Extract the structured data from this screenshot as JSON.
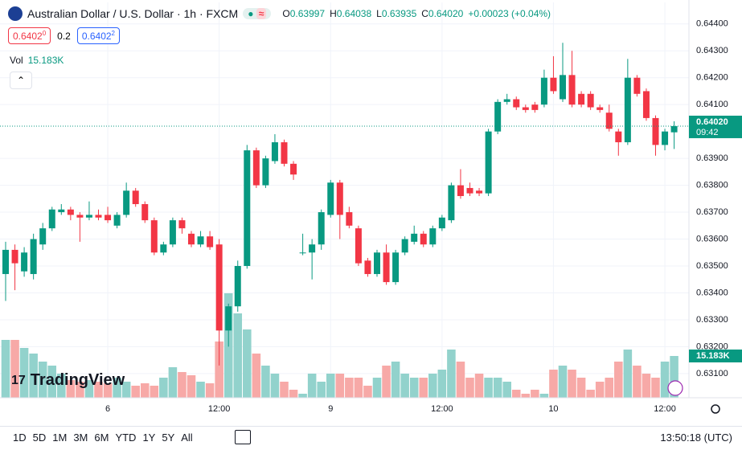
{
  "header": {
    "title": "Australian Dollar / U.S. Dollar · 1h · FXCM",
    "ohlc": [
      {
        "key": "O",
        "value": "0.63997"
      },
      {
        "key": "H",
        "value": "0.64038"
      },
      {
        "key": "L",
        "value": "0.63935"
      },
      {
        "key": "C",
        "value": "0.64020"
      }
    ],
    "change": "+0.00023 (+0.04%)",
    "bid": {
      "main": "0.6402",
      "sup": "0"
    },
    "spread": "0.2",
    "ask": {
      "main": "0.6402",
      "sup": "2"
    },
    "vol_label": "Vol",
    "vol_value": "15.183K"
  },
  "chart_data": {
    "type": "candlestick",
    "categories": [
      null,
      null,
      null,
      null,
      null,
      null,
      null,
      null,
      null,
      null,
      null,
      "6",
      null,
      null,
      null,
      null,
      null,
      null,
      null,
      null,
      null,
      null,
      null,
      "12:00",
      null,
      null,
      null,
      null,
      null,
      null,
      null,
      null,
      null,
      null,
      null,
      "9",
      null,
      null,
      null,
      null,
      null,
      null,
      null,
      null,
      null,
      null,
      null,
      "12:00",
      null,
      null,
      null,
      null,
      null,
      null,
      null,
      null,
      null,
      null,
      null,
      "10",
      null,
      null,
      null,
      null,
      null,
      null,
      null,
      null,
      null,
      null,
      null,
      "12:00",
      null
    ],
    "open": [
      0.6347,
      0.6356,
      0.6348,
      0.6347,
      0.6358,
      0.6364,
      0.637,
      0.6371,
      0.6369,
      0.6368,
      0.6369,
      0.6369,
      0.6365,
      0.6369,
      0.6378,
      0.6373,
      0.6367,
      0.6355,
      0.6358,
      0.6367,
      0.6362,
      0.6358,
      0.6361,
      0.6358,
      0.6326,
      0.6335,
      0.635,
      0.6393,
      0.638,
      0.6389,
      0.6396,
      0.6388,
      0.6355,
      0.6355,
      0.6358,
      0.6369,
      0.6381,
      0.637,
      0.6364,
      0.6352,
      0.6347,
      0.6355,
      0.6344,
      0.6355,
      0.6359,
      0.6362,
      0.6358,
      0.6364,
      0.6367,
      0.638,
      0.6379,
      0.6378,
      0.6377,
      0.64,
      0.6411,
      0.6412,
      0.6409,
      0.641,
      0.641,
      0.642,
      0.6412,
      0.6421,
      0.6414,
      0.6414,
      0.6409,
      0.6407,
      0.64,
      0.6396,
      0.642,
      0.6415,
      0.6405,
      0.6395,
      0.63997
    ],
    "high": [
      0.6359,
      0.6358,
      0.6357,
      0.6362,
      0.6366,
      0.6372,
      0.6373,
      0.6372,
      0.637,
      0.6374,
      0.6371,
      0.6372,
      0.637,
      0.6381,
      0.6379,
      0.6374,
      0.6368,
      0.6359,
      0.6368,
      0.6368,
      0.6363,
      0.6363,
      0.6363,
      0.636,
      0.6336,
      0.6352,
      0.6395,
      0.6394,
      0.6391,
      0.6399,
      0.6397,
      0.6389,
      0.6362,
      0.636,
      0.6371,
      0.6382,
      0.6382,
      0.6372,
      0.6365,
      0.6353,
      0.6356,
      0.6358,
      0.6356,
      0.6361,
      0.6365,
      0.6363,
      0.6365,
      0.6369,
      0.6381,
      0.6386,
      0.6381,
      0.6379,
      0.6401,
      0.6412,
      0.6414,
      0.6413,
      0.641,
      0.6411,
      0.6423,
      0.6428,
      0.6433,
      0.643,
      0.6415,
      0.6415,
      0.641,
      0.641,
      0.6401,
      0.6427,
      0.6421,
      0.6416,
      0.6406,
      0.6401,
      0.64038
    ],
    "low": [
      0.6337,
      0.6341,
      0.6346,
      0.6345,
      0.6356,
      0.6363,
      0.6369,
      0.6367,
      0.6359,
      0.6367,
      0.6367,
      0.6366,
      0.6364,
      0.6368,
      0.6372,
      0.6366,
      0.6354,
      0.6354,
      0.6357,
      0.6362,
      0.6357,
      0.6357,
      0.6356,
      0.6313,
      0.632,
      0.6333,
      0.6349,
      0.6379,
      0.6379,
      0.6388,
      0.6387,
      0.6382,
      0.6354,
      0.6345,
      0.6356,
      0.6368,
      0.636,
      0.6364,
      0.635,
      0.6346,
      0.6346,
      0.6343,
      0.6343,
      0.6354,
      0.6358,
      0.6357,
      0.6357,
      0.6363,
      0.6366,
      0.6375,
      0.6376,
      0.6376,
      0.6376,
      0.6399,
      0.641,
      0.6408,
      0.6407,
      0.6407,
      0.6409,
      0.6414,
      0.6411,
      0.6409,
      0.6409,
      0.6408,
      0.6407,
      0.64,
      0.6391,
      0.6395,
      0.6413,
      0.6404,
      0.6391,
      0.6393,
      0.63935
    ],
    "close": [
      0.6356,
      0.6351,
      0.6355,
      0.636,
      0.6364,
      0.6371,
      0.6371,
      0.6369,
      0.6368,
      0.6369,
      0.6368,
      0.6367,
      0.6369,
      0.6378,
      0.6373,
      0.6367,
      0.6355,
      0.6358,
      0.6367,
      0.6364,
      0.6358,
      0.6361,
      0.6357,
      0.6326,
      0.6335,
      0.635,
      0.6393,
      0.638,
      0.639,
      0.6396,
      0.6388,
      0.6384,
      0.6355,
      0.6358,
      0.637,
      0.6381,
      0.6369,
      0.6365,
      0.6351,
      0.6347,
      0.6355,
      0.6344,
      0.6355,
      0.636,
      0.6362,
      0.6358,
      0.6364,
      0.6368,
      0.638,
      0.6376,
      0.6377,
      0.6377,
      0.64,
      0.6411,
      0.6412,
      0.6409,
      0.6408,
      0.6408,
      0.642,
      0.6415,
      0.6421,
      0.641,
      0.641,
      0.6409,
      0.6408,
      0.6401,
      0.6396,
      0.642,
      0.6414,
      0.6405,
      0.6395,
      0.64,
      0.6402
    ],
    "volume": [
      21024,
      21024,
      18104,
      16060,
      13140,
      11680,
      8760,
      6424,
      5840,
      6424,
      5840,
      5256,
      7300,
      5840,
      4380,
      5256,
      4380,
      7300,
      11096,
      9344,
      8176,
      5840,
      5256,
      20440,
      37960,
      30660,
      24820,
      16060,
      11680,
      8760,
      5840,
      2920,
      1460,
      8760,
      5840,
      8760,
      8760,
      7300,
      7300,
      4380,
      7300,
      11680,
      13140,
      8760,
      7300,
      7300,
      8760,
      10220,
      17520,
      13140,
      7300,
      8760,
      7300,
      7300,
      5840,
      2920,
      1460,
      2920,
      1460,
      10220,
      11680,
      10220,
      7300,
      2920,
      5840,
      7300,
      13140,
      17520,
      11680,
      8760,
      7300,
      13140,
      15183
    ],
    "up_color": "#089981",
    "down_color": "#f23645",
    "up_volume_color": "#92d2cc",
    "down_volume_color": "#f7a9a7",
    "ylim": [
      0.6301,
      0.6448
    ],
    "yticks": [
      {
        "value": 0.644,
        "label": "0.64400"
      },
      {
        "value": 0.643,
        "label": "0.64300"
      },
      {
        "value": 0.642,
        "label": "0.64200"
      },
      {
        "value": 0.641,
        "label": "0.64100"
      },
      {
        "value": 0.639,
        "label": "0.63900"
      },
      {
        "value": 0.638,
        "label": "0.63800"
      },
      {
        "value": 0.637,
        "label": "0.63700"
      },
      {
        "value": 0.636,
        "label": "0.63600"
      },
      {
        "value": 0.635,
        "label": "0.63500"
      },
      {
        "value": 0.634,
        "label": "0.63400"
      },
      {
        "value": 0.633,
        "label": "0.63300"
      },
      {
        "value": 0.632,
        "label": "0.63200"
      },
      {
        "value": 0.631,
        "label": "0.63100"
      }
    ],
    "grid": true,
    "price_label": "0.64020",
    "countdown": "09:42",
    "volume_label": "15.183K"
  },
  "logo": "TradingView",
  "toolbar": {
    "ranges": [
      "1D",
      "5D",
      "1M",
      "3M",
      "6M",
      "YTD",
      "1Y",
      "5Y",
      "All"
    ],
    "clock": "13:50:18 (UTC)"
  }
}
